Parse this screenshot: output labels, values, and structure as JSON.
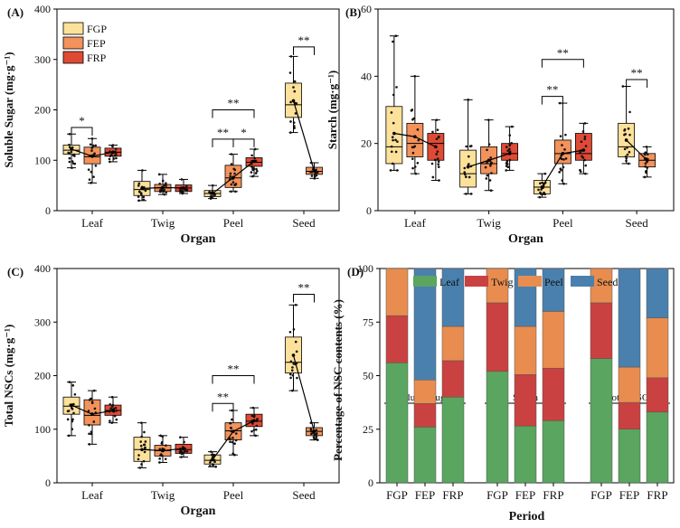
{
  "figure": {
    "width": 752,
    "height": 584
  },
  "colors": {
    "FGP": "#fce19a",
    "FEP": "#f3925a",
    "FRP": "#df4a34",
    "Leaf": "#5aa55f",
    "Twig": "#c94140",
    "Peel": "#e88d4f",
    "Seed": "#4a80ad"
  },
  "chart_data": [
    {
      "id": "A",
      "panel_label": "(A)",
      "type": "boxplot",
      "ylabel": "Soluble Sugar (mg·g⁻¹)",
      "xlabel": "Organ",
      "ylim": [
        0,
        400
      ],
      "yticks": [
        0,
        100,
        200,
        300,
        400
      ],
      "categories": [
        "Leaf",
        "Twig",
        "Peel",
        "Seed"
      ],
      "legend": [
        "FGP",
        "FEP",
        "FRP"
      ],
      "groups": [
        {
          "organ": "Leaf",
          "boxes": [
            {
              "period": "FGP",
              "min": 85,
              "q1": 112,
              "median": 120,
              "q3": 130,
              "max": 152,
              "mean": 122
            },
            {
              "period": "FEP",
              "min": 55,
              "q1": 93,
              "median": 107,
              "q3": 126,
              "max": 143,
              "mean": 108
            },
            {
              "period": "FRP",
              "min": 97,
              "q1": 108,
              "median": 116,
              "q3": 124,
              "max": 130,
              "mean": 116
            }
          ]
        },
        {
          "organ": "Twig",
          "boxes": [
            {
              "period": "FGP",
              "min": 20,
              "q1": 30,
              "median": 42,
              "q3": 58,
              "max": 80,
              "mean": 44
            },
            {
              "period": "FEP",
              "min": 32,
              "q1": 38,
              "median": 45,
              "q3": 52,
              "max": 72,
              "mean": 46
            },
            {
              "period": "FRP",
              "min": 34,
              "q1": 38,
              "median": 45,
              "q3": 51,
              "max": 62,
              "mean": 45
            }
          ]
        },
        {
          "organ": "Peel",
          "boxes": [
            {
              "period": "FGP",
              "min": 24,
              "q1": 28,
              "median": 34,
              "q3": 40,
              "max": 50,
              "mean": 34
            },
            {
              "period": "FEP",
              "min": 38,
              "q1": 46,
              "median": 65,
              "q3": 90,
              "max": 112,
              "mean": 66
            },
            {
              "period": "FRP",
              "min": 68,
              "q1": 88,
              "median": 96,
              "q3": 105,
              "max": 122,
              "mean": 98
            }
          ]
        },
        {
          "organ": "Seed",
          "boxes": [
            {
              "period": "FGP",
              "min": 155,
              "q1": 185,
              "median": 210,
              "q3": 253,
              "max": 306,
              "mean": 218
            },
            {
              "period": "FEP",
              "min": 64,
              "q1": 72,
              "median": 78,
              "q3": 86,
              "max": 95,
              "mean": 79
            }
          ]
        }
      ],
      "significance": [
        {
          "label": "*",
          "organ": "Leaf",
          "from": 0,
          "to": 1,
          "y": 165
        },
        {
          "label": "**",
          "organ": "Peel",
          "from": 0,
          "to": 1,
          "y": 142
        },
        {
          "label": "*",
          "organ": "Peel",
          "from": 1,
          "to": 2,
          "y": 142
        },
        {
          "label": "**",
          "organ": "Peel",
          "from": 0,
          "to": 2,
          "y": 200
        },
        {
          "label": "**",
          "organ": "Seed",
          "from": 0,
          "to": 1,
          "y": 325
        }
      ]
    },
    {
      "id": "B",
      "panel_label": "(B)",
      "type": "boxplot",
      "ylabel": "Starch (mg·g⁻¹)",
      "xlabel": "Organ",
      "ylim": [
        0,
        60
      ],
      "yticks": [
        0,
        20,
        40,
        60
      ],
      "categories": [
        "Leaf",
        "Twig",
        "Peel",
        "Seed"
      ],
      "groups": [
        {
          "organ": "Leaf",
          "boxes": [
            {
              "period": "FGP",
              "min": 12,
              "q1": 14,
              "median": 19,
              "q3": 31,
              "max": 52,
              "mean": 23
            },
            {
              "period": "FEP",
              "min": 11,
              "q1": 16,
              "median": 20,
              "q3": 26,
              "max": 40,
              "mean": 22
            },
            {
              "period": "FRP",
              "min": 9,
              "q1": 15,
              "median": 20,
              "q3": 23,
              "max": 27,
              "mean": 19
            }
          ]
        },
        {
          "organ": "Twig",
          "boxes": [
            {
              "period": "FGP",
              "min": 5,
              "q1": 7,
              "median": 11,
              "q3": 18,
              "max": 33,
              "mean": 13
            },
            {
              "period": "FEP",
              "min": 6,
              "q1": 11,
              "median": 14,
              "q3": 19,
              "max": 27,
              "mean": 15
            },
            {
              "period": "FRP",
              "min": 12,
              "q1": 15,
              "median": 17,
              "q3": 20,
              "max": 25,
              "mean": 17
            }
          ]
        },
        {
          "organ": "Peel",
          "boxes": [
            {
              "period": "FGP",
              "min": 4,
              "q1": 5,
              "median": 7,
              "q3": 9,
              "max": 11,
              "mean": 7
            },
            {
              "period": "FEP",
              "min": 8,
              "q1": 14,
              "median": 17,
              "q3": 21,
              "max": 32,
              "mean": 17
            },
            {
              "period": "FRP",
              "min": 11,
              "q1": 15,
              "median": 17,
              "q3": 23,
              "max": 26,
              "mean": 18
            }
          ]
        },
        {
          "organ": "Seed",
          "boxes": [
            {
              "period": "FGP",
              "min": 14,
              "q1": 16,
              "median": 19,
              "q3": 26,
              "max": 37,
              "mean": 21
            },
            {
              "period": "FEP",
              "min": 10,
              "q1": 13,
              "median": 15,
              "q3": 17,
              "max": 19,
              "mean": 15
            }
          ]
        }
      ],
      "significance": [
        {
          "label": "**",
          "organ": "Peel",
          "from": 0,
          "to": 1,
          "y": 34
        },
        {
          "label": "**",
          "organ": "Peel",
          "from": 0,
          "to": 2,
          "y": 45
        },
        {
          "label": "**",
          "organ": "Seed",
          "from": 0,
          "to": 1,
          "y": 39
        }
      ]
    },
    {
      "id": "C",
      "panel_label": "(C)",
      "type": "boxplot",
      "ylabel": "Total NSCs (mg·g⁻¹)",
      "xlabel": "Organ",
      "ylim": [
        0,
        400
      ],
      "yticks": [
        0,
        100,
        200,
        300,
        400
      ],
      "categories": [
        "Leaf",
        "Twig",
        "Peel",
        "Seed"
      ],
      "groups": [
        {
          "organ": "Leaf",
          "boxes": [
            {
              "period": "FGP",
              "min": 88,
              "q1": 128,
              "median": 143,
              "q3": 160,
              "max": 188,
              "mean": 145
            },
            {
              "period": "FEP",
              "min": 72,
              "q1": 108,
              "median": 126,
              "q3": 155,
              "max": 172,
              "mean": 128
            },
            {
              "period": "FRP",
              "min": 112,
              "q1": 126,
              "median": 135,
              "q3": 145,
              "max": 160,
              "mean": 135
            }
          ]
        },
        {
          "organ": "Twig",
          "boxes": [
            {
              "period": "FGP",
              "min": 28,
              "q1": 40,
              "median": 62,
              "q3": 85,
              "max": 112,
              "mean": 62
            },
            {
              "period": "FEP",
              "min": 38,
              "q1": 50,
              "median": 60,
              "q3": 70,
              "max": 88,
              "mean": 60
            },
            {
              "period": "FRP",
              "min": 48,
              "q1": 55,
              "median": 62,
              "q3": 72,
              "max": 85,
              "mean": 64
            }
          ]
        },
        {
          "organ": "Peel",
          "boxes": [
            {
              "period": "FGP",
              "min": 30,
              "q1": 35,
              "median": 42,
              "q3": 52,
              "max": 58,
              "mean": 43
            },
            {
              "period": "FEP",
              "min": 52,
              "q1": 80,
              "median": 97,
              "q3": 112,
              "max": 135,
              "mean": 96
            },
            {
              "period": "FRP",
              "min": 88,
              "q1": 105,
              "median": 115,
              "q3": 128,
              "max": 140,
              "mean": 116
            }
          ]
        },
        {
          "organ": "Seed",
          "boxes": [
            {
              "period": "FGP",
              "min": 172,
              "q1": 205,
              "median": 225,
              "q3": 272,
              "max": 332,
              "mean": 238
            },
            {
              "period": "FEP",
              "min": 80,
              "q1": 88,
              "median": 96,
              "q3": 103,
              "max": 112,
              "mean": 96
            }
          ]
        }
      ],
      "significance": [
        {
          "label": "**",
          "organ": "Peel",
          "from": 0,
          "to": 1,
          "y": 148
        },
        {
          "label": "**",
          "organ": "Peel",
          "from": 0,
          "to": 2,
          "y": 200
        },
        {
          "label": "**",
          "organ": "Seed",
          "from": 0,
          "to": 1,
          "y": 352
        }
      ]
    },
    {
      "id": "D",
      "panel_label": "(D)",
      "type": "stacked-bar",
      "ylabel": "Percentage of NSC contents (%)",
      "xlabel": "Period",
      "ylim": [
        0,
        100
      ],
      "yticks": [
        0,
        25,
        50,
        75,
        100
      ],
      "legend": [
        "Leaf",
        "Twig",
        "Peel",
        "Seed"
      ],
      "groups": [
        {
          "title": "Soluble Sugar",
          "bars": [
            {
              "period": "FGP",
              "values": [
                56,
                22,
                22,
                0
              ]
            },
            {
              "period": "FEP",
              "values": [
                26,
                11,
                11,
                52
              ]
            },
            {
              "period": "FRP",
              "values": [
                40,
                17,
                16,
                27
              ]
            }
          ]
        },
        {
          "title": "Starch",
          "bars": [
            {
              "period": "FGP",
              "values": [
                52,
                32,
                16,
                0
              ]
            },
            {
              "period": "FEP",
              "values": [
                26.5,
                24,
                22.5,
                27
              ]
            },
            {
              "period": "FRP",
              "values": [
                29,
                24.5,
                26.5,
                20
              ]
            }
          ]
        },
        {
          "title": "Total NSCs",
          "bars": [
            {
              "period": "FGP",
              "values": [
                58,
                26,
                16,
                0
              ]
            },
            {
              "period": "FEP",
              "values": [
                25,
                12.5,
                16.5,
                46
              ]
            },
            {
              "period": "FRP",
              "values": [
                33,
                16,
                28,
                23
              ]
            }
          ]
        }
      ]
    }
  ]
}
